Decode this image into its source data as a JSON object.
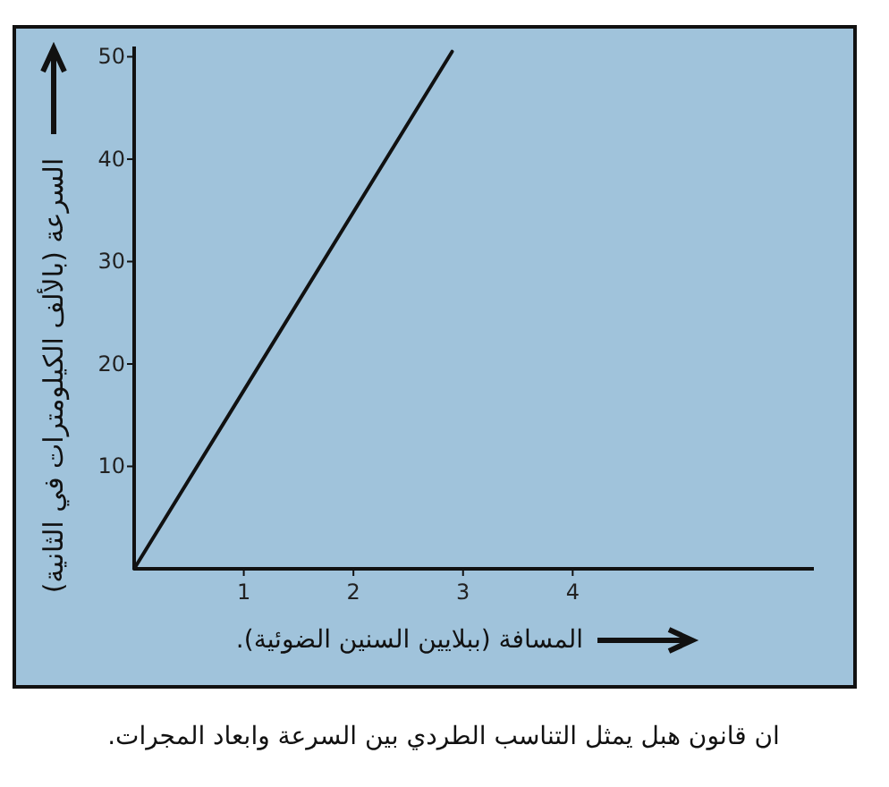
{
  "chart_data": {
    "type": "line",
    "xlabel": "المسافة (ببلايين السنين الضوئية).",
    "ylabel": "السرعة (بالألف الكيلومترات في الثانية)",
    "annotations": [
      "ان قانون هبل يمثل التناسب الطردي بين السرعة وابعاد المجرات."
    ],
    "series": [
      {
        "color": "#111111",
        "x": [
          0,
          2.9
        ],
        "values": [
          0,
          50.5
        ]
      }
    ],
    "xlim": [
      0,
      6.2
    ],
    "ylim": [
      0,
      51
    ],
    "xticks": [
      1,
      2,
      3,
      4
    ],
    "yticks": [
      10,
      20,
      30,
      40,
      50
    ],
    "grid": false,
    "marker": "none",
    "line_style": "solid"
  }
}
